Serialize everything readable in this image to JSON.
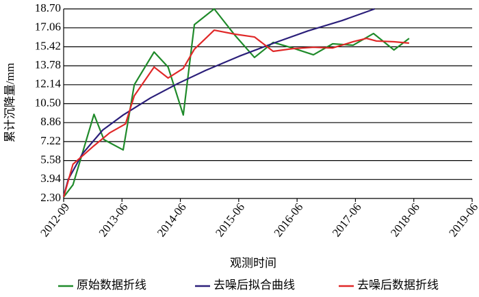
{
  "chart_data": {
    "type": "line",
    "x_label": "观测时间",
    "y_label": "累计沉降量/mm",
    "xlim": [
      0,
      7
    ],
    "xticks": [
      {
        "value": 0,
        "label": "2012-09"
      },
      {
        "value": 1,
        "label": "2013-06"
      },
      {
        "value": 2,
        "label": "2014-06"
      },
      {
        "value": 3,
        "label": "2015-06"
      },
      {
        "value": 4,
        "label": "2016-06"
      },
      {
        "value": 5,
        "label": "2017-06"
      },
      {
        "value": 6,
        "label": "2018-06"
      },
      {
        "value": 7,
        "label": "2019-06"
      }
    ],
    "ylim": [
      2.3,
      18.7
    ],
    "yticks": [
      {
        "value": 2.3,
        "label": "2.30"
      },
      {
        "value": 3.94,
        "label": "3.94"
      },
      {
        "value": 5.58,
        "label": "5.58"
      },
      {
        "value": 7.22,
        "label": "7.22"
      },
      {
        "value": 8.86,
        "label": "8.86"
      },
      {
        "value": 10.5,
        "label": "10.50"
      },
      {
        "value": 12.14,
        "label": "12.14"
      },
      {
        "value": 13.78,
        "label": "13.78"
      },
      {
        "value": 15.42,
        "label": "15.42"
      },
      {
        "value": 17.06,
        "label": "17.06"
      },
      {
        "value": 18.7,
        "label": "18.70"
      }
    ],
    "grid": true,
    "series": [
      {
        "name": "原始数据折线",
        "color": "#1f8a2a",
        "x": [
          0,
          0.16,
          0.52,
          0.69,
          1.02,
          1.21,
          1.55,
          1.79,
          2.05,
          2.24,
          2.58,
          2.94,
          3.27,
          3.59,
          3.92,
          4.28,
          4.61,
          4.96,
          5.31,
          5.66,
          5.92
        ],
        "values": [
          2.42,
          3.48,
          9.58,
          7.39,
          6.5,
          12.13,
          14.97,
          13.67,
          9.52,
          17.34,
          18.7,
          16.39,
          14.5,
          15.8,
          15.32,
          14.73,
          15.68,
          15.56,
          16.57,
          15.15,
          16.15
        ]
      },
      {
        "name": "去噪后拟合曲线",
        "color": "#2b1f7a",
        "x": [
          0,
          0.08,
          0.32,
          0.67,
          1.02,
          1.49,
          1.96,
          2.43,
          3.01,
          3.6,
          4.19,
          4.77,
          5.33
        ],
        "values": [
          2.5,
          3.96,
          6.15,
          8.22,
          9.52,
          11.0,
          12.25,
          13.37,
          14.61,
          15.74,
          16.8,
          17.69,
          18.7
        ]
      },
      {
        "name": "去噪后数据折线",
        "color": "#e02828",
        "x": [
          0,
          0.16,
          0.52,
          0.79,
          1.06,
          1.21,
          1.55,
          1.79,
          2.05,
          2.24,
          2.58,
          2.94,
          3.27,
          3.59,
          3.92,
          4.28,
          4.61,
          4.96,
          5.19,
          5.36,
          5.66,
          5.92
        ],
        "values": [
          2.42,
          5.26,
          6.86,
          7.98,
          8.75,
          11.18,
          13.67,
          12.72,
          13.55,
          15.21,
          16.86,
          16.51,
          16.27,
          15.03,
          15.26,
          15.38,
          15.32,
          15.86,
          16.15,
          15.92,
          15.86,
          15.74
        ]
      }
    ]
  }
}
